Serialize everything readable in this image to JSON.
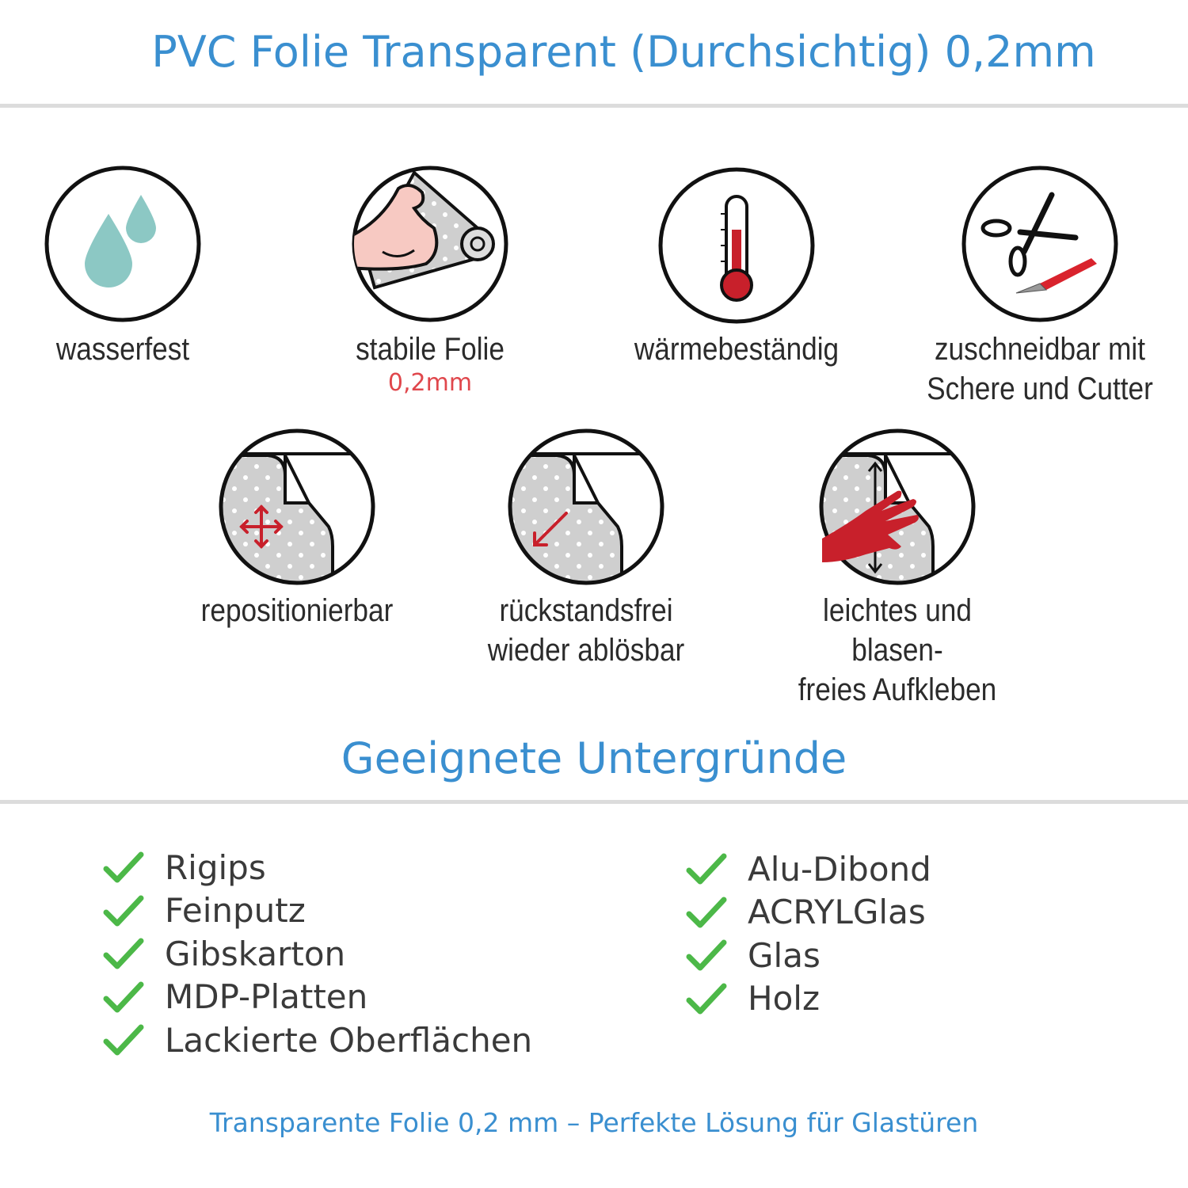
{
  "header": {
    "title": "PVC Folie Transparent (Durchsichtig) 0,2mm"
  },
  "features": [
    {
      "icon": "water-drops-icon",
      "label": "wasserfest"
    },
    {
      "icon": "strong-arm-roll-icon",
      "label": "stabile Folie",
      "sublabel": "0,2mm"
    },
    {
      "icon": "thermometer-icon",
      "label": "wärmebeständig"
    },
    {
      "icon": "scissors-cutter-icon",
      "label": "zuschneidbar mit",
      "label2": "Schere und Cutter"
    },
    {
      "icon": "reposition-arrows-icon",
      "label": "repositionierbar"
    },
    {
      "icon": "peel-off-icon",
      "label": "rückstandsfrei",
      "label2": "wieder ablösbar"
    },
    {
      "icon": "hand-apply-icon",
      "label": "leichtes und blasen-",
      "label2": "freies Aufkleben"
    }
  ],
  "surfaces": {
    "title": "Geeignete Untergründe",
    "left": [
      "Rigips",
      "Feinputz",
      "Gibskarton",
      "MDP-Platten",
      "Lackierte Oberflächen"
    ],
    "right": [
      "Alu-Dibond",
      "ACRYLGlas",
      "Glas",
      "Holz"
    ]
  },
  "footer": {
    "text": "Transparente Folie 0,2 mm – Perfekte Lösung für Glastüren"
  },
  "colors": {
    "accent": "#3a8fd0",
    "check": "#4cb848",
    "highlight": "#e0474c",
    "icon_red": "#c8202b",
    "drop": "#8cc8c4"
  }
}
